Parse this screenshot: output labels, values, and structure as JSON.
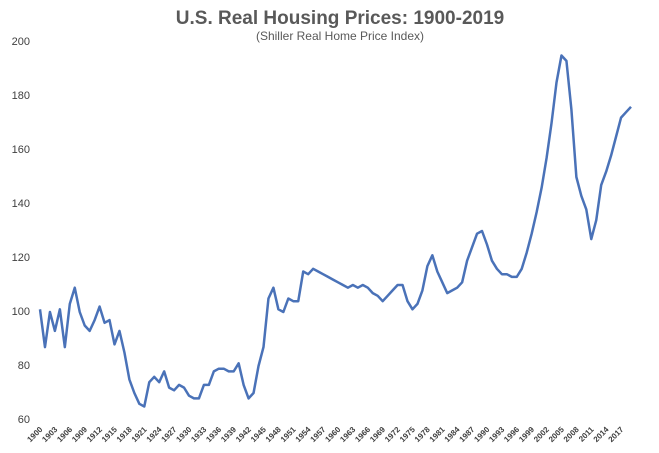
{
  "chart_data": {
    "type": "line",
    "title": "U.S. Real Housing Prices: 1900-2019",
    "subtitle": "(Shiller Real Home Price Index)",
    "x": [
      1900,
      1901,
      1902,
      1903,
      1904,
      1905,
      1906,
      1907,
      1908,
      1909,
      1910,
      1911,
      1912,
      1913,
      1914,
      1915,
      1916,
      1917,
      1918,
      1919,
      1920,
      1921,
      1922,
      1923,
      1924,
      1925,
      1926,
      1927,
      1928,
      1929,
      1930,
      1931,
      1932,
      1933,
      1934,
      1935,
      1936,
      1937,
      1938,
      1939,
      1940,
      1941,
      1942,
      1943,
      1944,
      1945,
      1946,
      1947,
      1948,
      1949,
      1950,
      1951,
      1952,
      1953,
      1954,
      1955,
      1956,
      1957,
      1958,
      1959,
      1960,
      1961,
      1962,
      1963,
      1964,
      1965,
      1966,
      1967,
      1968,
      1969,
      1970,
      1971,
      1972,
      1973,
      1974,
      1975,
      1976,
      1977,
      1978,
      1979,
      1980,
      1981,
      1982,
      1983,
      1984,
      1985,
      1986,
      1987,
      1988,
      1989,
      1990,
      1991,
      1992,
      1993,
      1994,
      1995,
      1996,
      1997,
      1998,
      1999,
      2000,
      2001,
      2002,
      2003,
      2004,
      2005,
      2006,
      2007,
      2008,
      2009,
      2010,
      2011,
      2012,
      2013,
      2014,
      2015,
      2016,
      2017,
      2018,
      2019
    ],
    "values": [
      101,
      87,
      100,
      93,
      101,
      87,
      103,
      109,
      100,
      95,
      93,
      97,
      102,
      96,
      97,
      88,
      93,
      85,
      75,
      70,
      66,
      65,
      74,
      76,
      74,
      78,
      72,
      71,
      73,
      72,
      69,
      68,
      68,
      73,
      73,
      78,
      79,
      79,
      78,
      78,
      81,
      73,
      68,
      70,
      80,
      87,
      105,
      109,
      101,
      100,
      105,
      104,
      104,
      115,
      114,
      116,
      115,
      114,
      113,
      112,
      111,
      110,
      109,
      110,
      109,
      110,
      109,
      107,
      106,
      104,
      106,
      108,
      110,
      110,
      104,
      101,
      103,
      108,
      117,
      121,
      115,
      111,
      107,
      108,
      109,
      111,
      119,
      124,
      129,
      130,
      125,
      119,
      116,
      114,
      114,
      113,
      113,
      116,
      122,
      129,
      137,
      146,
      157,
      170,
      185,
      195,
      193,
      175,
      150,
      143,
      138,
      127,
      134,
      147,
      152,
      158,
      165,
      172,
      174,
      176
    ],
    "color": "#4a72b8",
    "xlim": [
      1900,
      2019
    ],
    "xticks": [
      1900,
      1903,
      1906,
      1909,
      1912,
      1915,
      1918,
      1921,
      1924,
      1927,
      1930,
      1933,
      1936,
      1939,
      1942,
      1945,
      1948,
      1951,
      1954,
      1957,
      1960,
      1963,
      1966,
      1969,
      1972,
      1975,
      1978,
      1981,
      1984,
      1987,
      1990,
      1993,
      1996,
      1999,
      2002,
      2005,
      2008,
      2011,
      2014,
      2017
    ],
    "ylim": [
      60,
      200
    ],
    "yticks": [
      60,
      80,
      100,
      120,
      140,
      160,
      180,
      200
    ],
    "grid": false
  }
}
